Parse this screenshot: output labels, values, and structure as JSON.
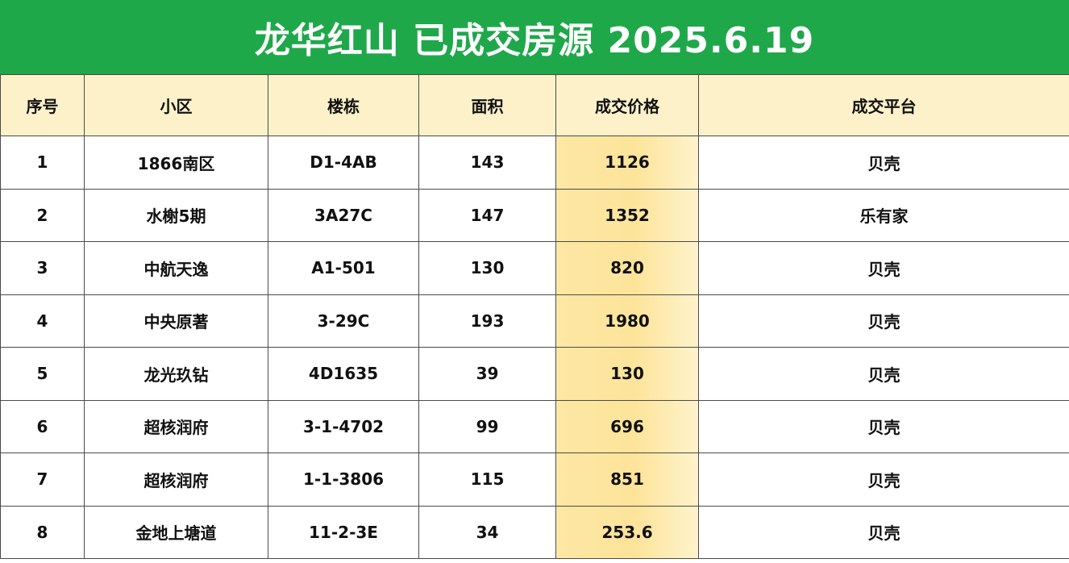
{
  "title": "龙华红山 已成交房源 2025.6.19",
  "table": {
    "headers": [
      "序号",
      "小区",
      "楼栋",
      "面积",
      "成交价格",
      "成交平台"
    ],
    "rows": [
      [
        "1",
        "1866南区",
        "D1-4AB",
        "143",
        "1126",
        "贝壳"
      ],
      [
        "2",
        "水榭5期",
        "3A27C",
        "147",
        "1352",
        "乐有家"
      ],
      [
        "3",
        "中航天逸",
        "A1-501",
        "130",
        "820",
        "贝壳"
      ],
      [
        "4",
        "中央原著",
        "3-29C",
        "193",
        "1980",
        "贝壳"
      ],
      [
        "5",
        "龙光玖钻",
        "4D1635",
        "39",
        "130",
        "贝壳"
      ],
      [
        "6",
        "超核润府",
        "3-1-4702",
        "99",
        "696",
        "贝壳"
      ],
      [
        "7",
        "超核润府",
        "1-1-3806",
        "115",
        "851",
        "贝壳"
      ],
      [
        "8",
        "金地上塘道",
        "11-2-3E",
        "34",
        "253.6",
        "贝壳"
      ]
    ]
  },
  "colors": {
    "title_bg": "#1fa84a",
    "header_bg": "#fdf1c9",
    "price_col_bg": "#fde49a",
    "border": "#4a4a4a"
  }
}
